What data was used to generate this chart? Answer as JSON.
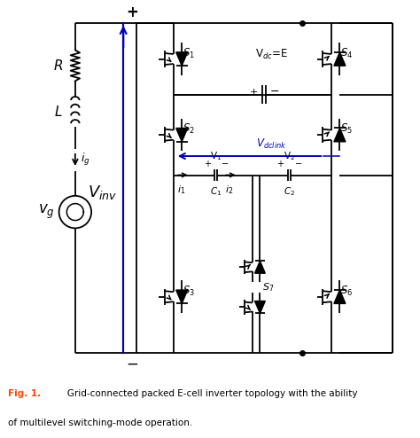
{
  "fig_width": 4.74,
  "fig_height": 4.94,
  "dpi": 100,
  "caption_fig": "Fig. 1.",
  "caption_text": "   Grid-connected packed E-cell inverter topology with the ability",
  "caption_text2": "of multilevel switching-mode operation.",
  "caption_color": "#FF4500",
  "caption_text_color": "#000000",
  "line_color": "#000000",
  "blue_color": "#0000BB",
  "background": "#FFFFFF"
}
